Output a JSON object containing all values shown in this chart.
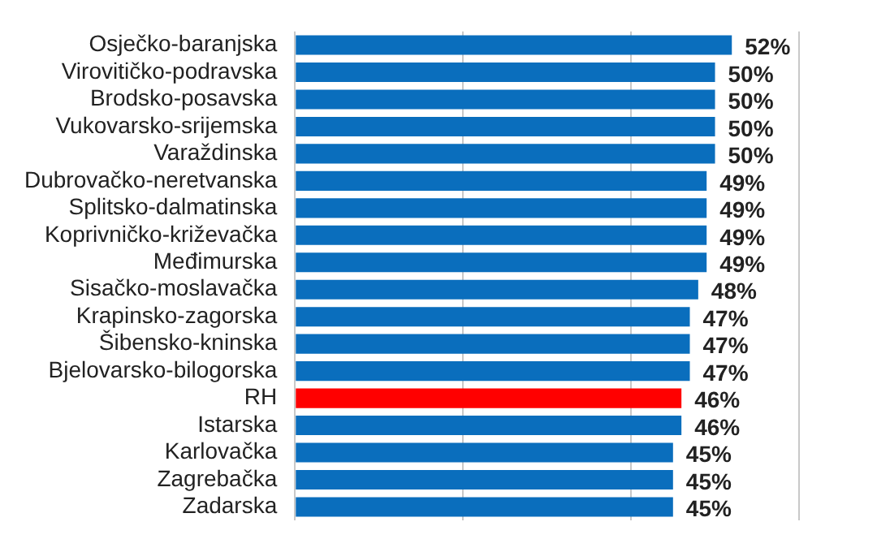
{
  "chart_data": {
    "type": "bar",
    "orientation": "horizontal",
    "categories": [
      "Osječko-baranjska",
      "Virovitičko-podravska",
      "Brodsko-posavska",
      "Vukovarsko-srijemska",
      "Varaždinska",
      "Dubrovačko-neretvanska",
      "Splitsko-dalmatinska",
      "Koprivničko-križevačka",
      "Međimurska",
      "Sisačko-moslavačka",
      "Krapinsko-zagorska",
      "Šibensko-kninska",
      "Bjelovarsko-bilogorska",
      "RH",
      "Istarska",
      "Karlovačka",
      "Zagrebačka",
      "Zadarska"
    ],
    "values": [
      52,
      50,
      50,
      50,
      50,
      49,
      49,
      49,
      49,
      48,
      47,
      47,
      47,
      46,
      46,
      45,
      45,
      45
    ],
    "colors": [
      "#0a6ebd",
      "#0a6ebd",
      "#0a6ebd",
      "#0a6ebd",
      "#0a6ebd",
      "#0a6ebd",
      "#0a6ebd",
      "#0a6ebd",
      "#0a6ebd",
      "#0a6ebd",
      "#0a6ebd",
      "#0a6ebd",
      "#0a6ebd",
      "#ff0000",
      "#0a6ebd",
      "#0a6ebd",
      "#0a6ebd",
      "#0a6ebd"
    ],
    "value_labels": [
      "52%",
      "50%",
      "50%",
      "50%",
      "50%",
      "49%",
      "49%",
      "49%",
      "49%",
      "48%",
      "47%",
      "47%",
      "47%",
      "46%",
      "46%",
      "45%",
      "45%",
      "45%"
    ],
    "xlim": [
      0,
      60
    ],
    "xticks": [
      {
        "value": 0,
        "label": null
      },
      {
        "value": 20,
        "label": null
      },
      {
        "value": 40,
        "label": null
      },
      {
        "value": 60,
        "label": null
      }
    ],
    "tick_labels": "y",
    "grid": "x",
    "legend": false
  }
}
